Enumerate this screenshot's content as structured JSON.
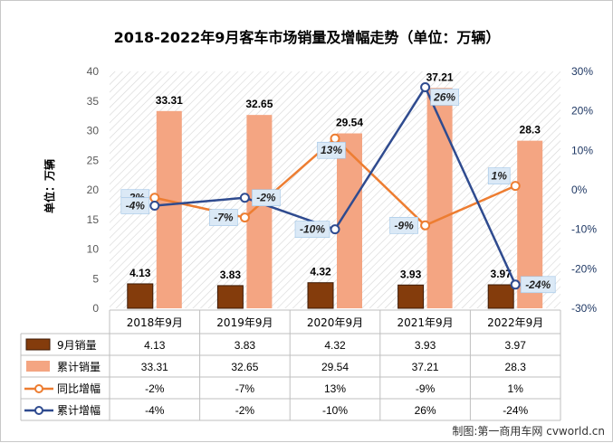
{
  "chart_data": {
    "type": "bar",
    "title": "2018-2022年9月客车市场销量及增幅走势（单位：万辆）",
    "ylabel": "单位：万辆",
    "ylim": [
      0,
      40
    ],
    "y2lim": [
      -30,
      30
    ],
    "y_ticks": [
      "0",
      "5",
      "10",
      "15",
      "20",
      "25",
      "30",
      "35",
      "40"
    ],
    "y2_ticks": [
      "-30%",
      "-20%",
      "-10%",
      "0%",
      "10%",
      "20%",
      "30%"
    ],
    "categories": [
      "2018年9月",
      "2019年9月",
      "2020年9月",
      "2021年9月",
      "2022年9月"
    ],
    "series": [
      {
        "name": "9月销量",
        "kind": "bar",
        "color": "#843c0c",
        "values": [
          4.13,
          3.83,
          4.32,
          3.93,
          3.97
        ],
        "labels": [
          "4.13",
          "3.83",
          "4.32",
          "3.93",
          "3.97"
        ]
      },
      {
        "name": "累计销量",
        "kind": "bar",
        "color": "#f4a582",
        "values": [
          33.31,
          32.65,
          29.54,
          37.21,
          28.3
        ],
        "labels": [
          "33.31",
          "32.65",
          "29.54",
          "37.21",
          "28.3"
        ]
      },
      {
        "name": "同比增幅",
        "kind": "line",
        "axis": "right",
        "color": "#ed7d31",
        "values": [
          -2,
          -7,
          13,
          -9,
          1
        ],
        "labels": [
          "-2%",
          "-7%",
          "13%",
          "-9%",
          "1%"
        ]
      },
      {
        "name": "累计增幅",
        "kind": "line",
        "axis": "right",
        "color": "#2f4b8f",
        "values": [
          -4,
          -2,
          -10,
          26,
          -24
        ],
        "labels": [
          "-4%",
          "-2%",
          "-10%",
          "26%",
          "-24%"
        ]
      }
    ],
    "legend": "data-table-below",
    "grid": false,
    "background": "diagonal-hatch"
  },
  "source": "制图:第一商用车网 cvworld.cn"
}
